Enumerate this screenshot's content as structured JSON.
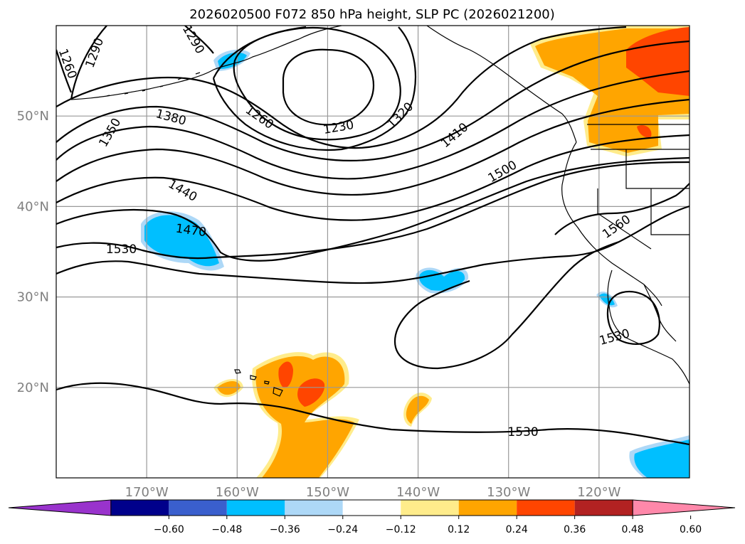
{
  "chart_data": {
    "type": "contour-map",
    "title": "2026020500 F072 850 hPa height, SLP PC (2026021200)",
    "lon_range": [
      -180,
      -110
    ],
    "lat_range": [
      10,
      60
    ],
    "lat_ticks": [
      {
        "value": 50,
        "label": "50°N"
      },
      {
        "value": 40,
        "label": "40°N"
      },
      {
        "value": 30,
        "label": "30°N"
      },
      {
        "value": 20,
        "label": "20°N"
      }
    ],
    "lon_ticks": [
      {
        "value": -170,
        "label": "170°W"
      },
      {
        "value": -160,
        "label": "160°W"
      },
      {
        "value": -150,
        "label": "150°W"
      },
      {
        "value": -140,
        "label": "140°W"
      },
      {
        "value": -130,
        "label": "130°W"
      },
      {
        "value": -120,
        "label": "120°W"
      }
    ],
    "grid": true,
    "contour_labels": [
      {
        "text": "1290",
        "lon": -175.8,
        "lat": 57.0,
        "rot": -70
      },
      {
        "text": "1260",
        "lon": -178.7,
        "lat": 55.8,
        "rot": 70
      },
      {
        "text": "1290",
        "lon": -164.8,
        "lat": 58.5,
        "rot": 60
      },
      {
        "text": "1380",
        "lon": -167.3,
        "lat": 49.9,
        "rot": 15
      },
      {
        "text": "1350",
        "lon": -174.1,
        "lat": 48.2,
        "rot": -60
      },
      {
        "text": "1260",
        "lon": -157.5,
        "lat": 49.9,
        "rot": 35
      },
      {
        "text": "1230",
        "lon": -148.8,
        "lat": 48.8,
        "rot": -10
      },
      {
        "text": "1320",
        "lon": -142.0,
        "lat": 50.1,
        "rot": -45
      },
      {
        "text": "1410",
        "lon": -136.0,
        "lat": 47.9,
        "rot": -40
      },
      {
        "text": "1440",
        "lon": -166.0,
        "lat": 41.8,
        "rot": 30
      },
      {
        "text": "1500",
        "lon": -130.7,
        "lat": 43.9,
        "rot": -30
      },
      {
        "text": "1470",
        "lon": -165.1,
        "lat": 37.4,
        "rot": 8
      },
      {
        "text": "1530",
        "lon": -172.8,
        "lat": 35.3,
        "rot": 0
      },
      {
        "text": "1560",
        "lon": -118.1,
        "lat": 37.8,
        "rot": -35
      },
      {
        "text": "1530",
        "lon": -118.3,
        "lat": 25.6,
        "rot": -15
      },
      {
        "text": "1530",
        "lon": -128.4,
        "lat": 15.1,
        "rot": 0
      }
    ],
    "colorbar": {
      "colors": [
        "#9933cc",
        "#00008b",
        "#3a5fcd",
        "#00bfff",
        "#add8f7",
        "#ffffff",
        "#ffec8b",
        "#ffa500",
        "#ff4500",
        "#b22222",
        "#ff88aa"
      ],
      "tick_labels": [
        "−0.60",
        "−0.48",
        "−0.36",
        "−0.24",
        "−0.12",
        "0.12",
        "0.24",
        "0.36",
        "0.48",
        "0.60"
      ],
      "levels": [
        -0.6,
        -0.48,
        -0.36,
        -0.24,
        -0.12,
        0.12,
        0.24,
        0.36,
        0.48,
        0.6
      ]
    }
  }
}
